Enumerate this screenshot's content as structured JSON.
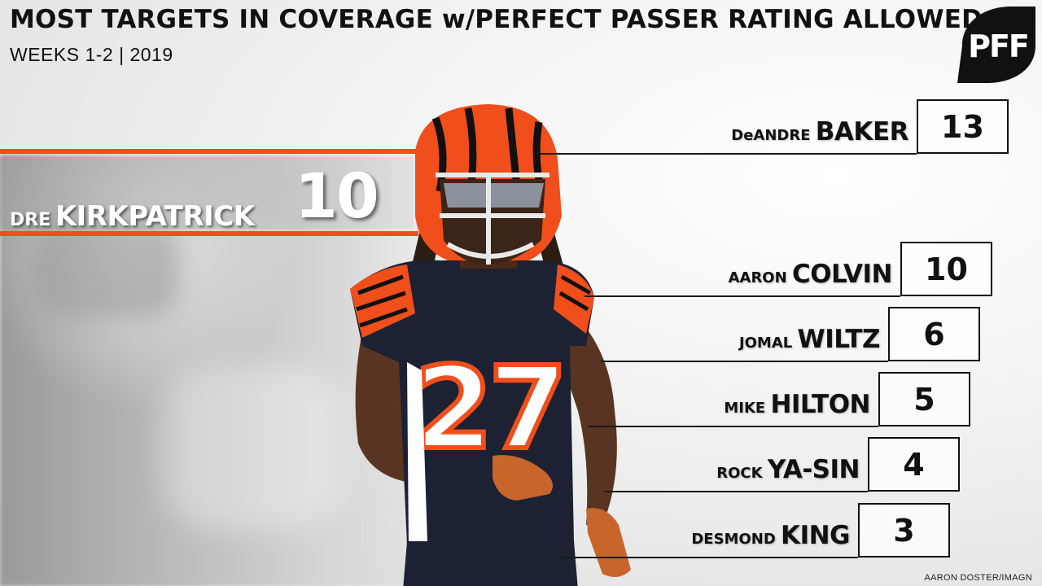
{
  "header": {
    "title": "MOST TARGETS IN COVERAGE w/PERFECT PASSER RATING ALLOWED",
    "subtitle": "WEEKS 1-2 | 2019"
  },
  "logo": {
    "text": "PFF",
    "icon": "pff-logo"
  },
  "colors": {
    "accent": "#f04e1b",
    "ink": "#111111",
    "helmet_orange": "#f04e1b",
    "jersey_navy": "#1c2133"
  },
  "featured": {
    "first": "DRE",
    "last": "KIRKPATRICK",
    "value": "10"
  },
  "player_photo": {
    "icon": "player-photo",
    "jersey_number": "27"
  },
  "credit": "AARON DOSTER/IMAGN",
  "chart_data": {
    "type": "bar",
    "title": "MOST TARGETS IN COVERAGE w/PERFECT PASSER RATING ALLOWED",
    "subtitle": "WEEKS 1-2 | 2019",
    "categories": [
      "DeANDRE BAKER",
      "DRE KIRKPATRICK",
      "AARON COLVIN",
      "JOMAL WILTZ",
      "MIKE HILTON",
      "ROCK YA-SIN",
      "DESMOND KING"
    ],
    "values": [
      13,
      10,
      10,
      6,
      5,
      4,
      3
    ],
    "rows": [
      {
        "first": "DeANDRE",
        "last": "BAKER",
        "value": "13"
      },
      {
        "first": "AARON",
        "last": "COLVIN",
        "value": "10"
      },
      {
        "first": "JOMAL",
        "last": "WILTZ",
        "value": "6"
      },
      {
        "first": "MIKE",
        "last": "HILTON",
        "value": "5"
      },
      {
        "first": "ROCK",
        "last": "YA-SIN",
        "value": "4"
      },
      {
        "first": "DESMOND",
        "last": "KING",
        "value": "3"
      }
    ]
  }
}
